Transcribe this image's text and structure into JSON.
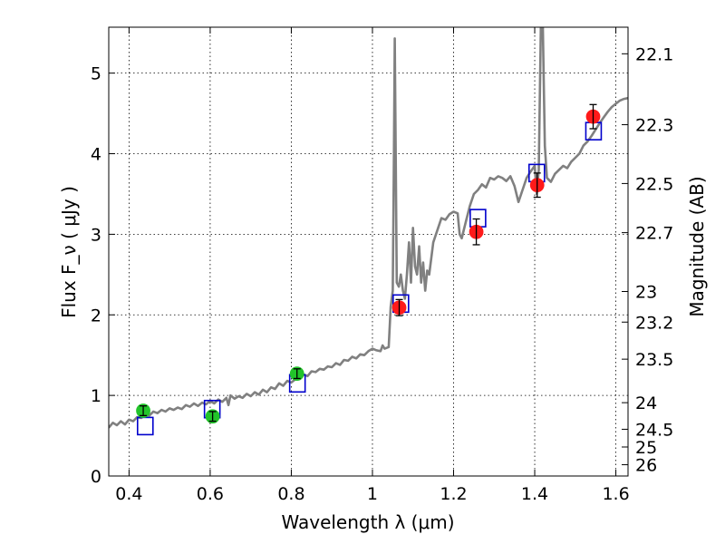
{
  "chart_data": {
    "type": "scatter",
    "xlabel": "Wavelength  λ (μm)",
    "ylabel": "Flux  F_ν  ( μJy )",
    "ylabel2": "Magnitude (AB)",
    "xlim": [
      0.35,
      1.63
    ],
    "ylim": [
      0,
      5.57
    ],
    "grid": true,
    "x_ticks": [
      0.4,
      0.6,
      0.8,
      1.0,
      1.2,
      1.4,
      1.6
    ],
    "x_tick_labels": [
      "0.4",
      "0.6",
      "0.8",
      "1",
      "1.2",
      "1.4",
      "1.6"
    ],
    "y_ticks": [
      0,
      1,
      2,
      3,
      4,
      5
    ],
    "y_tick_labels": [
      "0",
      "1",
      "2",
      "3",
      "4",
      "5"
    ],
    "mag_ticks": [
      {
        "label": "22.1",
        "flux": 5.24
      },
      {
        "label": "22.3",
        "flux": 4.36
      },
      {
        "label": "22.5",
        "flux": 3.63
      },
      {
        "label": "22.7",
        "flux": 3.02
      },
      {
        "label": "23",
        "flux": 2.29
      },
      {
        "label": "23.2",
        "flux": 1.91
      },
      {
        "label": "23.5",
        "flux": 1.45
      },
      {
        "label": "24",
        "flux": 0.91
      },
      {
        "label": "24.5",
        "flux": 0.58
      },
      {
        "label": "25",
        "flux": 0.36
      },
      {
        "label": "26",
        "flux": 0.14
      }
    ],
    "series": [
      {
        "kind": "spectrum",
        "color": "#808080",
        "points": [
          [
            0.35,
            0.6
          ],
          [
            0.36,
            0.66
          ],
          [
            0.37,
            0.63
          ],
          [
            0.38,
            0.68
          ],
          [
            0.39,
            0.64
          ],
          [
            0.4,
            0.7
          ],
          [
            0.41,
            0.68
          ],
          [
            0.42,
            0.73
          ],
          [
            0.43,
            0.72
          ],
          [
            0.44,
            0.76
          ],
          [
            0.45,
            0.75
          ],
          [
            0.46,
            0.8
          ],
          [
            0.47,
            0.78
          ],
          [
            0.48,
            0.82
          ],
          [
            0.49,
            0.8
          ],
          [
            0.5,
            0.84
          ],
          [
            0.51,
            0.82
          ],
          [
            0.52,
            0.85
          ],
          [
            0.53,
            0.83
          ],
          [
            0.54,
            0.88
          ],
          [
            0.55,
            0.86
          ],
          [
            0.56,
            0.9
          ],
          [
            0.57,
            0.87
          ],
          [
            0.58,
            0.91
          ],
          [
            0.59,
            0.89
          ],
          [
            0.6,
            0.93
          ],
          [
            0.61,
            0.9
          ],
          [
            0.62,
            0.95
          ],
          [
            0.63,
            0.92
          ],
          [
            0.64,
            0.97
          ],
          [
            0.645,
            0.88
          ],
          [
            0.65,
            1.0
          ],
          [
            0.66,
            0.96
          ],
          [
            0.67,
            0.99
          ],
          [
            0.68,
            0.97
          ],
          [
            0.69,
            1.02
          ],
          [
            0.7,
            0.99
          ],
          [
            0.71,
            1.04
          ],
          [
            0.72,
            1.01
          ],
          [
            0.73,
            1.07
          ],
          [
            0.74,
            1.04
          ],
          [
            0.75,
            1.1
          ],
          [
            0.76,
            1.08
          ],
          [
            0.77,
            1.15
          ],
          [
            0.78,
            1.12
          ],
          [
            0.79,
            1.18
          ],
          [
            0.8,
            1.16
          ],
          [
            0.81,
            1.2
          ],
          [
            0.82,
            1.22
          ],
          [
            0.83,
            1.26
          ],
          [
            0.84,
            1.24
          ],
          [
            0.85,
            1.3
          ],
          [
            0.86,
            1.29
          ],
          [
            0.87,
            1.33
          ],
          [
            0.88,
            1.32
          ],
          [
            0.89,
            1.36
          ],
          [
            0.9,
            1.35
          ],
          [
            0.91,
            1.4
          ],
          [
            0.92,
            1.38
          ],
          [
            0.93,
            1.44
          ],
          [
            0.94,
            1.43
          ],
          [
            0.95,
            1.48
          ],
          [
            0.96,
            1.46
          ],
          [
            0.97,
            1.51
          ],
          [
            0.98,
            1.5
          ],
          [
            0.99,
            1.55
          ],
          [
            1.0,
            1.58
          ],
          [
            1.01,
            1.56
          ],
          [
            1.02,
            1.55
          ],
          [
            1.025,
            1.62
          ],
          [
            1.03,
            1.58
          ],
          [
            1.04,
            1.6
          ],
          [
            1.045,
            2.1
          ],
          [
            1.05,
            2.3
          ],
          [
            1.053,
            4.0
          ],
          [
            1.055,
            5.43
          ],
          [
            1.057,
            4.2
          ],
          [
            1.06,
            2.4
          ],
          [
            1.065,
            2.35
          ],
          [
            1.07,
            2.5
          ],
          [
            1.075,
            2.3
          ],
          [
            1.08,
            2.2
          ],
          [
            1.085,
            2.5
          ],
          [
            1.09,
            2.9
          ],
          [
            1.095,
            2.4
          ],
          [
            1.1,
            3.08
          ],
          [
            1.105,
            2.6
          ],
          [
            1.11,
            2.5
          ],
          [
            1.115,
            2.85
          ],
          [
            1.12,
            2.4
          ],
          [
            1.125,
            2.65
          ],
          [
            1.13,
            2.3
          ],
          [
            1.135,
            2.55
          ],
          [
            1.14,
            2.5
          ],
          [
            1.15,
            2.9
          ],
          [
            1.16,
            3.05
          ],
          [
            1.17,
            3.2
          ],
          [
            1.18,
            3.18
          ],
          [
            1.19,
            3.25
          ],
          [
            1.2,
            3.28
          ],
          [
            1.21,
            3.26
          ],
          [
            1.215,
            3.0
          ],
          [
            1.22,
            2.95
          ],
          [
            1.23,
            3.15
          ],
          [
            1.24,
            3.35
          ],
          [
            1.25,
            3.5
          ],
          [
            1.26,
            3.55
          ],
          [
            1.27,
            3.62
          ],
          [
            1.28,
            3.58
          ],
          [
            1.29,
            3.7
          ],
          [
            1.3,
            3.68
          ],
          [
            1.31,
            3.72
          ],
          [
            1.32,
            3.7
          ],
          [
            1.33,
            3.66
          ],
          [
            1.34,
            3.72
          ],
          [
            1.35,
            3.6
          ],
          [
            1.36,
            3.4
          ],
          [
            1.37,
            3.55
          ],
          [
            1.38,
            3.7
          ],
          [
            1.39,
            3.78
          ],
          [
            1.4,
            3.85
          ],
          [
            1.405,
            3.5
          ],
          [
            1.41,
            3.8
          ],
          [
            1.415,
            5.57
          ],
          [
            1.42,
            5.57
          ],
          [
            1.425,
            4.1
          ],
          [
            1.43,
            3.7
          ],
          [
            1.44,
            3.65
          ],
          [
            1.45,
            3.75
          ],
          [
            1.46,
            3.8
          ],
          [
            1.47,
            3.85
          ],
          [
            1.48,
            3.82
          ],
          [
            1.49,
            3.9
          ],
          [
            1.5,
            3.95
          ],
          [
            1.51,
            4.0
          ],
          [
            1.52,
            4.1
          ],
          [
            1.53,
            4.15
          ],
          [
            1.54,
            4.22
          ],
          [
            1.55,
            4.3
          ],
          [
            1.56,
            4.38
          ],
          [
            1.57,
            4.45
          ],
          [
            1.58,
            4.52
          ],
          [
            1.59,
            4.58
          ],
          [
            1.6,
            4.62
          ],
          [
            1.61,
            4.66
          ],
          [
            1.62,
            4.68
          ],
          [
            1.63,
            4.69
          ]
        ]
      },
      {
        "kind": "model_bandpass",
        "color": "#0000cc",
        "points": [
          [
            0.44,
            0.62
          ],
          [
            0.605,
            0.83
          ],
          [
            0.815,
            1.15
          ],
          [
            1.07,
            2.14
          ],
          [
            1.26,
            3.2
          ],
          [
            1.405,
            3.76
          ],
          [
            1.545,
            4.28
          ]
        ]
      },
      {
        "kind": "observed_optical",
        "color": "#22c42a",
        "points": [
          {
            "x": 0.435,
            "y": 0.81,
            "err": 0.06
          },
          {
            "x": 0.606,
            "y": 0.74,
            "err": 0.06
          },
          {
            "x": 0.814,
            "y": 1.27,
            "err": 0.06
          }
        ]
      },
      {
        "kind": "observed_ir",
        "color": "#ff1a1a",
        "points": [
          {
            "x": 1.066,
            "y": 2.09,
            "err": 0.1
          },
          {
            "x": 1.256,
            "y": 3.03,
            "err": 0.16
          },
          {
            "x": 1.406,
            "y": 3.61,
            "err": 0.15
          },
          {
            "x": 1.544,
            "y": 4.46,
            "err": 0.15
          }
        ]
      }
    ]
  }
}
